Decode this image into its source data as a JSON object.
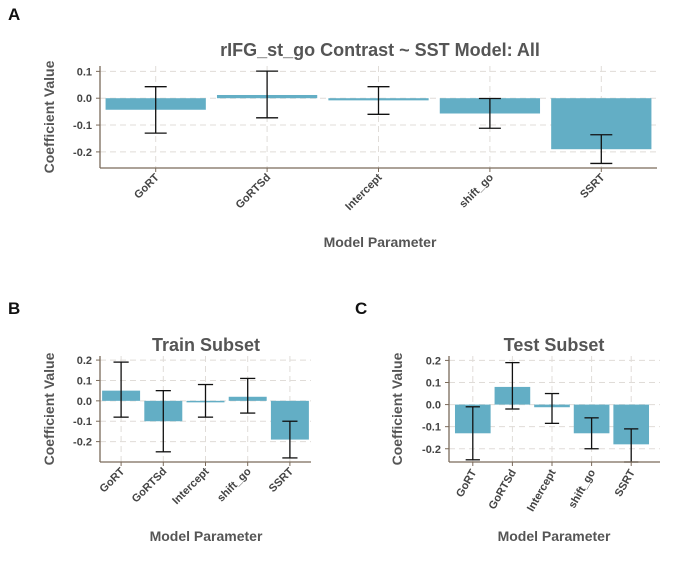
{
  "panels": [
    {
      "letter": "A"
    },
    {
      "letter": "B"
    },
    {
      "letter": "C"
    }
  ],
  "chart_data": [
    {
      "type": "bar",
      "title": "rIFG_st_go Contrast ~ SST Model: All",
      "xlabel": "Model Parameter",
      "ylabel": "Coefficient Value",
      "categories": [
        "GoRT",
        "GoRTSd",
        "Intercept",
        "shift_go",
        "SSRT"
      ],
      "values": [
        -0.043,
        0.012,
        -0.008,
        -0.057,
        -0.19
      ],
      "error_low": [
        -0.13,
        -0.073,
        -0.06,
        -0.112,
        -0.243
      ],
      "error_high": [
        0.043,
        0.101,
        0.043,
        -0.001,
        -0.136
      ],
      "ylim": [
        -0.26,
        0.12
      ],
      "yticks": [
        -0.2,
        -0.1,
        0.0,
        0.1
      ],
      "ytick_labels": [
        "-0.2",
        "-0.1",
        "0.0",
        "0.1"
      ],
      "color": "#63aec5",
      "grid": true
    },
    {
      "type": "bar",
      "title": "Train Subset",
      "xlabel": "Model Parameter",
      "ylabel": "Coefficient Value",
      "categories": [
        "GoRT",
        "GoRTSd",
        "Intercept",
        "shift_go",
        "SSRT"
      ],
      "values": [
        0.05,
        -0.1,
        0.0,
        0.02,
        -0.19
      ],
      "error_low": [
        -0.08,
        -0.25,
        -0.08,
        -0.06,
        -0.28
      ],
      "error_high": [
        0.19,
        0.05,
        0.08,
        0.11,
        -0.1
      ],
      "ylim": [
        -0.3,
        0.22
      ],
      "yticks": [
        -0.2,
        -0.1,
        0.0,
        0.1,
        0.2
      ],
      "ytick_labels": [
        "-0.2",
        "-0.1",
        "0.0",
        "0.1",
        "0.2"
      ],
      "color": "#63aec5",
      "grid": true
    },
    {
      "type": "bar",
      "title": "Test Subset",
      "xlabel": "Model Parameter",
      "ylabel": "Coefficient Value",
      "categories": [
        "GoRT",
        "GoRTSd",
        "Intercept",
        "shift_go",
        "SSRT"
      ],
      "values": [
        -0.13,
        0.08,
        -0.012,
        -0.13,
        -0.18
      ],
      "error_low": [
        -0.25,
        -0.02,
        -0.085,
        -0.2,
        -0.26
      ],
      "error_high": [
        -0.01,
        0.19,
        0.05,
        -0.06,
        -0.11
      ],
      "ylim": [
        -0.26,
        0.22
      ],
      "yticks": [
        -0.2,
        -0.1,
        0.0,
        0.1,
        0.2
      ],
      "ytick_labels": [
        "-0.2",
        "-0.1",
        "0.0",
        "0.1",
        "0.2"
      ],
      "color": "#63aec5",
      "grid": true
    }
  ]
}
